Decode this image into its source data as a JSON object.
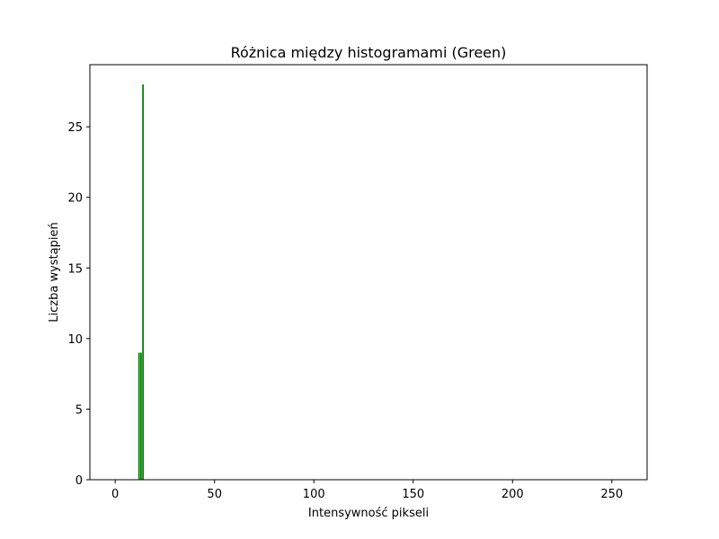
{
  "chart_data": {
    "type": "bar",
    "title": "Różnica między histogramami (Green)",
    "xlabel": "Intensywność pikseli",
    "ylabel": "Liczba wystąpień",
    "xlim": [
      -12.75,
      267.75
    ],
    "ylim": [
      0,
      29.4
    ],
    "xticks": [
      0,
      50,
      100,
      150,
      200,
      250
    ],
    "yticks": [
      0,
      5,
      10,
      15,
      20,
      25
    ],
    "grid": false,
    "bar_color": "#008000",
    "bar_width": 0.8,
    "series": [
      {
        "x": [
          12,
          13,
          14
        ],
        "values": [
          9,
          9,
          28
        ]
      }
    ]
  }
}
